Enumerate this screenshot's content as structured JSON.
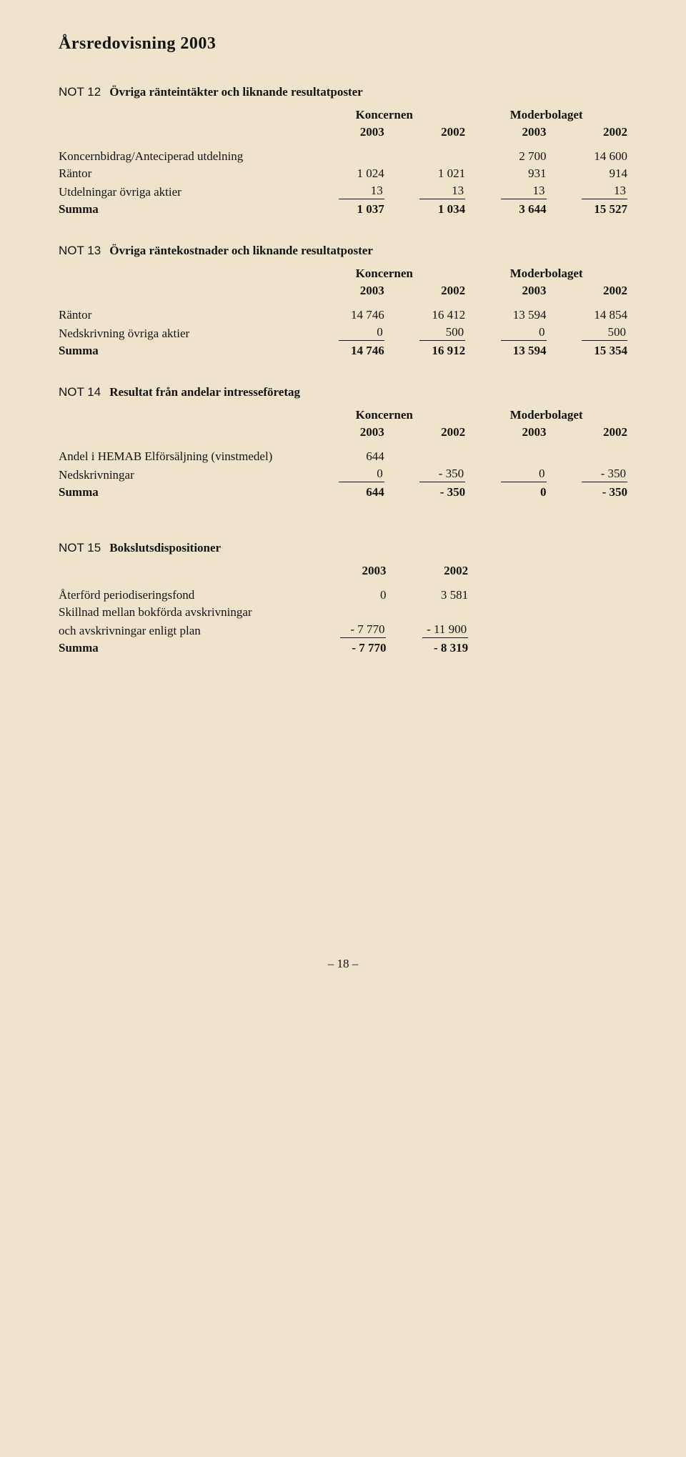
{
  "doc_title": "Årsredovisning 2003",
  "page_number": "– 18 –",
  "group_heading_1": "Koncernen",
  "group_heading_2": "Moderbolaget",
  "year_1": "2003",
  "year_2": "2002",
  "not12": {
    "label": "NOT 12",
    "title": "Övriga ränteintäkter och liknande resultatposter",
    "rows": [
      {
        "label": "Koncernbidrag/Anteciperad utdelning",
        "k1": "",
        "k2": "",
        "m1": "2 700",
        "m2": "14 600"
      },
      {
        "label": "Räntor",
        "k1": "1 024",
        "k2": "1 021",
        "m1": "931",
        "m2": "914"
      },
      {
        "label": "Utdelningar övriga aktier",
        "k1": "13",
        "k2": "13",
        "m1": "13",
        "m2": "13",
        "underline": true
      },
      {
        "label": "Summa",
        "k1": "1 037",
        "k2": "1 034",
        "m1": "3 644",
        "m2": "15 527",
        "bold": true
      }
    ]
  },
  "not13": {
    "label": "NOT 13",
    "title": "Övriga räntekostnader och liknande resultatposter",
    "rows": [
      {
        "label": "Räntor",
        "k1": "14 746",
        "k2": "16 412",
        "m1": "13 594",
        "m2": "14 854"
      },
      {
        "label": "Nedskrivning övriga aktier",
        "k1": "0",
        "k2": "500",
        "m1": "0",
        "m2": "500",
        "underline": true
      },
      {
        "label": "Summa",
        "k1": "14 746",
        "k2": "16 912",
        "m1": "13 594",
        "m2": "15 354",
        "bold": true
      }
    ]
  },
  "not14": {
    "label": "NOT 14",
    "title": "Resultat från andelar intresseföretag",
    "rows": [
      {
        "label": "Andel i HEMAB Elförsäljning (vinstmedel)",
        "k1": "644",
        "k2": "",
        "m1": "",
        "m2": ""
      },
      {
        "label": "Nedskrivningar",
        "k1": "0",
        "k2": "- 350",
        "m1": "0",
        "m2": "- 350",
        "underline": true
      },
      {
        "label": "Summa",
        "k1": "644",
        "k2": "- 350",
        "m1": "0",
        "m2": "- 350",
        "bold": true
      }
    ]
  },
  "not15": {
    "label": "NOT 15",
    "title": "Bokslutsdispositioner",
    "rows": [
      {
        "label": "Återförd periodiseringsfond",
        "c1": "0",
        "c2": "3 581"
      },
      {
        "label": "Skillnad mellan bokförda avskrivningar",
        "c1": "",
        "c2": "",
        "nobreak": true
      },
      {
        "label": "och avskrivningar enligt plan",
        "c1": "- 7 770",
        "c2": "- 11 900",
        "underline": true
      },
      {
        "label": "Summa",
        "c1": "- 7 770",
        "c2": "- 8 319",
        "bold": true
      }
    ]
  }
}
